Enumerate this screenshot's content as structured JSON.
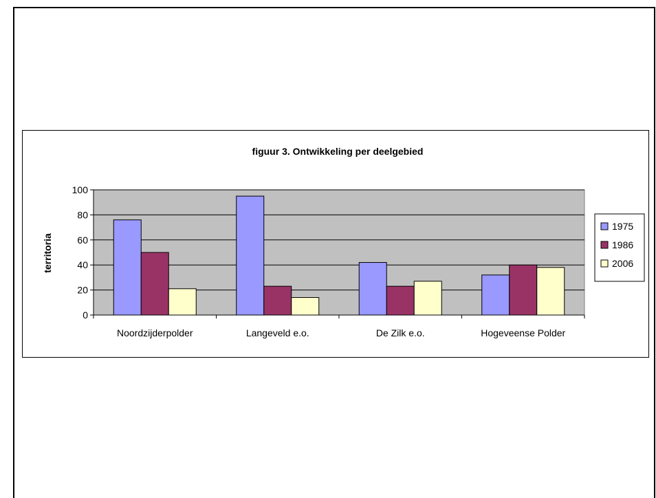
{
  "chart_data": {
    "type": "bar",
    "title": "figuur 3. Ontwikkeling per deelgebied",
    "xlabel": "",
    "ylabel": "territoria",
    "ylim": [
      0,
      100
    ],
    "yticks": [
      0,
      20,
      40,
      60,
      80,
      100
    ],
    "categories": [
      "Noordzijderpolder",
      "Langeveld e.o.",
      "De Zilk e.o.",
      "Hogeveense Polder"
    ],
    "series": [
      {
        "name": "1975",
        "values": [
          76,
          95,
          42,
          32
        ],
        "color": "#9999ff"
      },
      {
        "name": "1986",
        "values": [
          50,
          23,
          23,
          40
        ],
        "color": "#993366"
      },
      {
        "name": "2006",
        "values": [
          21,
          14,
          27,
          38
        ],
        "color": "#ffffcc"
      }
    ],
    "grid": true,
    "plot_background": "#c0c0c0",
    "legend_position": "right"
  }
}
